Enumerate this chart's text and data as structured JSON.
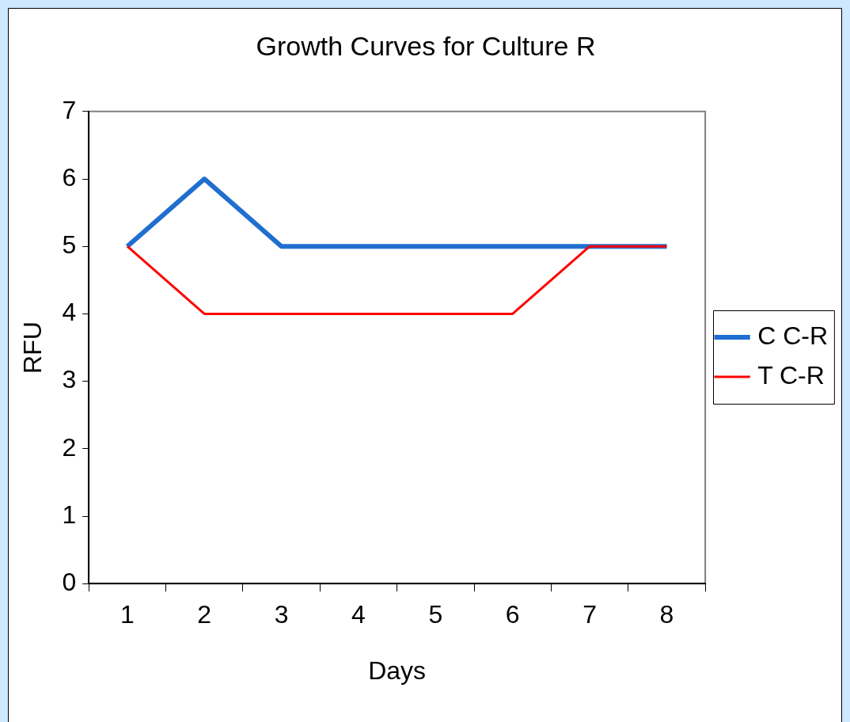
{
  "chart_data": {
    "type": "line",
    "title": "Growth Curves for Culture R",
    "xlabel": "Days",
    "ylabel": "RFU",
    "categories": [
      "1",
      "2",
      "3",
      "4",
      "5",
      "6",
      "7",
      "8"
    ],
    "series": [
      {
        "name": "C C-R",
        "color": "#1f6fd0",
        "values": [
          5,
          6,
          5,
          5,
          5,
          5,
          5,
          5
        ]
      },
      {
        "name": "T C-R",
        "color": "#ff0000",
        "values": [
          5,
          4,
          4,
          4,
          4,
          4,
          5,
          5
        ]
      }
    ],
    "ylim": [
      0,
      7
    ],
    "yticks": [
      0,
      1,
      2,
      3,
      4,
      5,
      6,
      7
    ],
    "grid": false,
    "legend": "right",
    "marker": "none",
    "line_style": "solid"
  }
}
